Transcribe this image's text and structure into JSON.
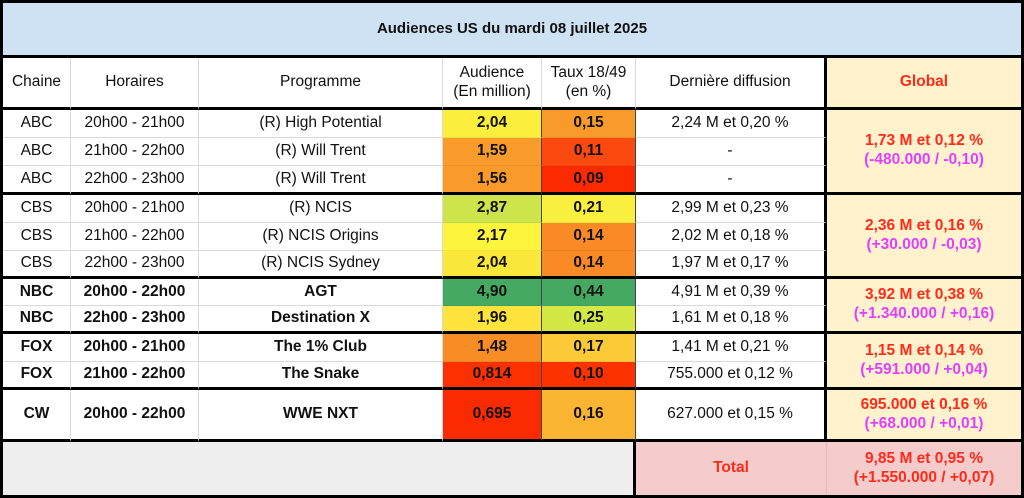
{
  "title": "Audiences US du mardi 08 juillet 2025",
  "headers": {
    "chaine": "Chaine",
    "horaires": "Horaires",
    "programme": "Programme",
    "audience_l1": "Audience",
    "audience_l2": "(En million)",
    "taux_l1": "Taux 18/49",
    "taux_l2": "(en %)",
    "derniere": "Dernière diffusion",
    "global": "Global"
  },
  "rows": [
    {
      "chaine": "ABC",
      "horaires": "20h00 - 21h00",
      "programme": "(R) High Potential",
      "audience": "2,04",
      "taux": "0,15",
      "derniere": "2,24 M et 0,20 %",
      "audience_color": "#fbee3c",
      "taux_color": "#fa9a2a",
      "bold": false
    },
    {
      "chaine": "ABC",
      "horaires": "21h00 - 22h00",
      "programme": "(R) Will Trent",
      "audience": "1,59",
      "taux": "0,11",
      "derniere": "-",
      "audience_color": "#f99c2b",
      "taux_color": "#fb4a10",
      "bold": false
    },
    {
      "chaine": "ABC",
      "horaires": "22h00 - 23h00",
      "programme": "(R) Will Trent",
      "audience": "1,56",
      "taux": "0,09",
      "derniere": "-",
      "audience_color": "#f99a2b",
      "taux_color": "#fc2a00",
      "bold": false
    },
    {
      "chaine": "CBS",
      "horaires": "20h00 - 21h00",
      "programme": "(R) NCIS",
      "audience": "2,87",
      "taux": "0,21",
      "derniere": "2,99 M et 0,23 %",
      "audience_color": "#cde44a",
      "taux_color": "#f9ef3e",
      "bold": false
    },
    {
      "chaine": "CBS",
      "horaires": "21h00 - 22h00",
      "programme": "(R) NCIS Origins",
      "audience": "2,17",
      "taux": "0,14",
      "derniere": "2,02 M et 0,18 %",
      "audience_color": "#fdf43c",
      "taux_color": "#f98a26",
      "bold": false
    },
    {
      "chaine": "CBS",
      "horaires": "22h00 - 23h00",
      "programme": "(R) NCIS Sydney",
      "audience": "2,04",
      "taux": "0,14",
      "derniere": "1,97 M et 0,17 %",
      "audience_color": "#fbe83b",
      "taux_color": "#f98a26",
      "bold": false
    },
    {
      "chaine": "NBC",
      "horaires": "20h00 - 22h00",
      "programme": "AGT",
      "audience": "4,90",
      "taux": "0,44",
      "derniere": "4,91 M et 0,39 %",
      "audience_color": "#46a961",
      "taux_color": "#46a961",
      "bold": true
    },
    {
      "chaine": "NBC",
      "horaires": "22h00 - 23h00",
      "programme": "Destination X",
      "audience": "1,96",
      "taux": "0,25",
      "derniere": "1,61 M et 0,18 %",
      "audience_color": "#fde33b",
      "taux_color": "#d3e745",
      "bold": true
    },
    {
      "chaine": "FOX",
      "horaires": "20h00 - 21h00",
      "programme": "The 1% Club",
      "audience": "1,48",
      "taux": "0,17",
      "derniere": "1,41 M et 0,21 %",
      "audience_color": "#f98d25",
      "taux_color": "#fcca36",
      "bold": true
    },
    {
      "chaine": "FOX",
      "horaires": "21h00 - 22h00",
      "programme": "The Snake",
      "audience": "0,814",
      "taux": "0,10",
      "derniere": "755.000 et 0,12 %",
      "audience_color": "#fc3000",
      "taux_color": "#fc3300",
      "bold": true
    },
    {
      "chaine": "CW",
      "horaires": "20h00 - 22h00",
      "programme": "WWE NXT",
      "audience": "0,695",
      "taux": "0,16",
      "derniere": "627.000 et 0,15 %",
      "audience_color": "#fc2a00",
      "taux_color": "#fbb532",
      "bold": true
    }
  ],
  "globals": [
    {
      "network": "ABC",
      "main": "1,73 M et 0,12 %",
      "delta": "(-480.000 / -0,10)"
    },
    {
      "network": "CBS",
      "main": "2,36 M et 0,16 %",
      "delta": "(+30.000 / -0,03)"
    },
    {
      "network": "NBC",
      "main": "3,92 M et 0,38 %",
      "delta": "(+1.340.000 / +0,16)"
    },
    {
      "network": "FOX",
      "main": "1,15 M et 0,14 %",
      "delta": "(+591.000 / +0,04)"
    },
    {
      "network": "CW",
      "main": "695.000 et 0,16 %",
      "delta": "(+68.000 / +0,01)"
    }
  ],
  "total": {
    "label": "Total",
    "main": "9,85 M et 0,95 %",
    "delta": "(+1.550.000 / +0,07)"
  }
}
